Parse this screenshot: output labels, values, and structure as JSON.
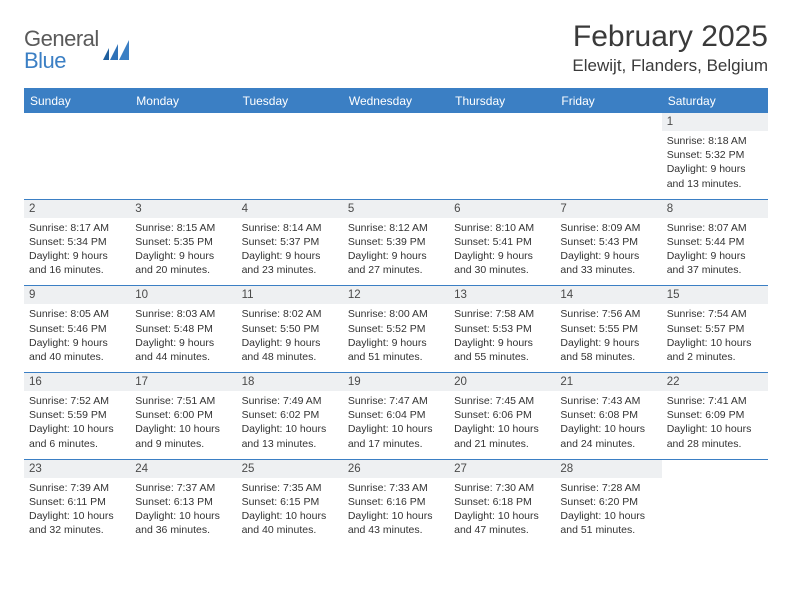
{
  "brand": {
    "word1": "General",
    "word2": "Blue"
  },
  "title": "February 2025",
  "location": "Elewijt, Flanders, Belgium",
  "colors": {
    "accent": "#3b7fc4",
    "text": "#3a3a3a",
    "cell_header_bg": "#eef0f2",
    "body_text": "#333333",
    "page_bg": "#ffffff"
  },
  "typography": {
    "title_fontsize": 30,
    "location_fontsize": 17,
    "weekday_fontsize": 12,
    "daynum_fontsize": 11.5,
    "body_fontsize": 10.5
  },
  "weekdays": [
    "Sunday",
    "Monday",
    "Tuesday",
    "Wednesday",
    "Thursday",
    "Friday",
    "Saturday"
  ],
  "calendar": {
    "type": "table",
    "columns": 7,
    "rows": 5,
    "cells": [
      [
        null,
        null,
        null,
        null,
        null,
        null,
        {
          "day": "1",
          "sunrise": "8:18 AM",
          "sunset": "5:32 PM",
          "daylight": "9 hours and 13 minutes."
        }
      ],
      [
        {
          "day": "2",
          "sunrise": "8:17 AM",
          "sunset": "5:34 PM",
          "daylight": "9 hours and 16 minutes."
        },
        {
          "day": "3",
          "sunrise": "8:15 AM",
          "sunset": "5:35 PM",
          "daylight": "9 hours and 20 minutes."
        },
        {
          "day": "4",
          "sunrise": "8:14 AM",
          "sunset": "5:37 PM",
          "daylight": "9 hours and 23 minutes."
        },
        {
          "day": "5",
          "sunrise": "8:12 AM",
          "sunset": "5:39 PM",
          "daylight": "9 hours and 27 minutes."
        },
        {
          "day": "6",
          "sunrise": "8:10 AM",
          "sunset": "5:41 PM",
          "daylight": "9 hours and 30 minutes."
        },
        {
          "day": "7",
          "sunrise": "8:09 AM",
          "sunset": "5:43 PM",
          "daylight": "9 hours and 33 minutes."
        },
        {
          "day": "8",
          "sunrise": "8:07 AM",
          "sunset": "5:44 PM",
          "daylight": "9 hours and 37 minutes."
        }
      ],
      [
        {
          "day": "9",
          "sunrise": "8:05 AM",
          "sunset": "5:46 PM",
          "daylight": "9 hours and 40 minutes."
        },
        {
          "day": "10",
          "sunrise": "8:03 AM",
          "sunset": "5:48 PM",
          "daylight": "9 hours and 44 minutes."
        },
        {
          "day": "11",
          "sunrise": "8:02 AM",
          "sunset": "5:50 PM",
          "daylight": "9 hours and 48 minutes."
        },
        {
          "day": "12",
          "sunrise": "8:00 AM",
          "sunset": "5:52 PM",
          "daylight": "9 hours and 51 minutes."
        },
        {
          "day": "13",
          "sunrise": "7:58 AM",
          "sunset": "5:53 PM",
          "daylight": "9 hours and 55 minutes."
        },
        {
          "day": "14",
          "sunrise": "7:56 AM",
          "sunset": "5:55 PM",
          "daylight": "9 hours and 58 minutes."
        },
        {
          "day": "15",
          "sunrise": "7:54 AM",
          "sunset": "5:57 PM",
          "daylight": "10 hours and 2 minutes."
        }
      ],
      [
        {
          "day": "16",
          "sunrise": "7:52 AM",
          "sunset": "5:59 PM",
          "daylight": "10 hours and 6 minutes."
        },
        {
          "day": "17",
          "sunrise": "7:51 AM",
          "sunset": "6:00 PM",
          "daylight": "10 hours and 9 minutes."
        },
        {
          "day": "18",
          "sunrise": "7:49 AM",
          "sunset": "6:02 PM",
          "daylight": "10 hours and 13 minutes."
        },
        {
          "day": "19",
          "sunrise": "7:47 AM",
          "sunset": "6:04 PM",
          "daylight": "10 hours and 17 minutes."
        },
        {
          "day": "20",
          "sunrise": "7:45 AM",
          "sunset": "6:06 PM",
          "daylight": "10 hours and 21 minutes."
        },
        {
          "day": "21",
          "sunrise": "7:43 AM",
          "sunset": "6:08 PM",
          "daylight": "10 hours and 24 minutes."
        },
        {
          "day": "22",
          "sunrise": "7:41 AM",
          "sunset": "6:09 PM",
          "daylight": "10 hours and 28 minutes."
        }
      ],
      [
        {
          "day": "23",
          "sunrise": "7:39 AM",
          "sunset": "6:11 PM",
          "daylight": "10 hours and 32 minutes."
        },
        {
          "day": "24",
          "sunrise": "7:37 AM",
          "sunset": "6:13 PM",
          "daylight": "10 hours and 36 minutes."
        },
        {
          "day": "25",
          "sunrise": "7:35 AM",
          "sunset": "6:15 PM",
          "daylight": "10 hours and 40 minutes."
        },
        {
          "day": "26",
          "sunrise": "7:33 AM",
          "sunset": "6:16 PM",
          "daylight": "10 hours and 43 minutes."
        },
        {
          "day": "27",
          "sunrise": "7:30 AM",
          "sunset": "6:18 PM",
          "daylight": "10 hours and 47 minutes."
        },
        {
          "day": "28",
          "sunrise": "7:28 AM",
          "sunset": "6:20 PM",
          "daylight": "10 hours and 51 minutes."
        },
        null
      ]
    ]
  },
  "labels": {
    "sunrise": "Sunrise:",
    "sunset": "Sunset:",
    "daylight": "Daylight:"
  }
}
